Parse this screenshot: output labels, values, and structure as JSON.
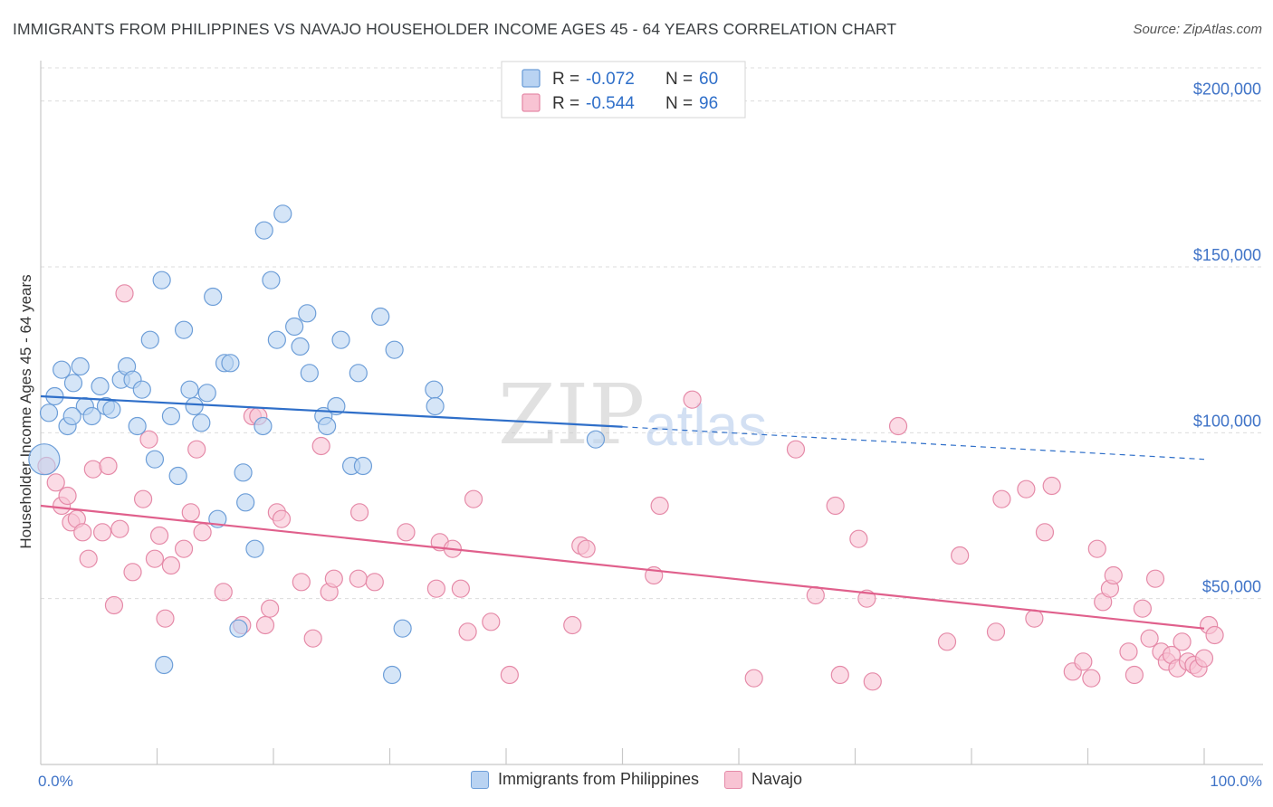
{
  "title": "IMMIGRANTS FROM PHILIPPINES VS NAVAJO HOUSEHOLDER INCOME AGES 45 - 64 YEARS CORRELATION CHART",
  "source": "Source: ZipAtlas.com",
  "watermark": {
    "zip": "ZIP",
    "atlas": "atlas"
  },
  "colors": {
    "blue_fill": "#b9d3f2",
    "blue_stroke": "#6d9ed8",
    "blue_line": "#2f6fc9",
    "pink_fill": "#f8c3d3",
    "pink_stroke": "#e58aa8",
    "pink_line": "#e0608c",
    "tick_label": "#3f73c7",
    "grid": "#dcdcdc"
  },
  "legend_top": [
    {
      "r_label": "R = ",
      "r_value": "-0.072",
      "n_label": "N = ",
      "n_value": "60"
    },
    {
      "r_label": "R = ",
      "r_value": "-0.544",
      "n_label": "N = ",
      "n_value": "96"
    }
  ],
  "chart_data": {
    "type": "scatter",
    "xlabel": "",
    "ylabel": "Householder Income Ages 45 - 64 years",
    "xlim": [
      0,
      100
    ],
    "ylim": [
      0,
      210000
    ],
    "x_tick_labels": {
      "left": "0.0%",
      "right": "100.0%"
    },
    "y_ticks": [
      {
        "value": 50000,
        "label": "$50,000"
      },
      {
        "value": 100000,
        "label": "$100,000"
      },
      {
        "value": 150000,
        "label": "$150,000"
      },
      {
        "value": 200000,
        "label": "$200,000"
      }
    ],
    "grid": true,
    "legend_position": "top-center",
    "series": [
      {
        "name": "Immigrants from Philippines",
        "color": "#b9d3f2",
        "trend": {
          "x0": 0,
          "y0": 111000,
          "x1": 50,
          "y1": 101800,
          "dash_x1": 100,
          "dash_y1": 92000
        },
        "points": [
          [
            0.3,
            92000
          ],
          [
            0.7,
            106000
          ],
          [
            1.2,
            111000
          ],
          [
            1.8,
            119000
          ],
          [
            2.3,
            102000
          ],
          [
            2.8,
            115000
          ],
          [
            3.4,
            120000
          ],
          [
            3.8,
            108000
          ],
          [
            4.4,
            105000
          ],
          [
            5.1,
            114000
          ],
          [
            5.6,
            108000
          ],
          [
            6.1,
            107000
          ],
          [
            6.9,
            116000
          ],
          [
            7.4,
            120000
          ],
          [
            7.9,
            116000
          ],
          [
            8.3,
            102000
          ],
          [
            8.7,
            113000
          ],
          [
            9.4,
            128000
          ],
          [
            9.8,
            92000
          ],
          [
            10.4,
            146000
          ],
          [
            11.2,
            105000
          ],
          [
            11.8,
            87000
          ],
          [
            12.3,
            131000
          ],
          [
            12.8,
            113000
          ],
          [
            13.2,
            108000
          ],
          [
            13.8,
            103000
          ],
          [
            14.3,
            112000
          ],
          [
            14.8,
            141000
          ],
          [
            15.2,
            74000
          ],
          [
            15.8,
            121000
          ],
          [
            16.3,
            121000
          ],
          [
            17.0,
            41000
          ],
          [
            17.4,
            88000
          ],
          [
            17.6,
            79000
          ],
          [
            18.4,
            65000
          ],
          [
            19.1,
            102000
          ],
          [
            19.2,
            161000
          ],
          [
            19.8,
            146000
          ],
          [
            20.3,
            128000
          ],
          [
            20.8,
            166000
          ],
          [
            21.8,
            132000
          ],
          [
            22.3,
            126000
          ],
          [
            22.9,
            136000
          ],
          [
            23.1,
            118000
          ],
          [
            24.3,
            105000
          ],
          [
            24.6,
            102000
          ],
          [
            25.4,
            108000
          ],
          [
            25.8,
            128000
          ],
          [
            26.7,
            90000
          ],
          [
            27.3,
            118000
          ],
          [
            27.7,
            90000
          ],
          [
            29.2,
            135000
          ],
          [
            30.4,
            125000
          ],
          [
            31.1,
            41000
          ],
          [
            33.8,
            113000
          ],
          [
            33.9,
            108000
          ],
          [
            47.7,
            98000
          ],
          [
            10.6,
            30000
          ],
          [
            30.2,
            27000
          ],
          [
            2.7,
            105000
          ]
        ]
      },
      {
        "name": "Navajo",
        "color": "#f8c3d3",
        "trend": {
          "x0": 0,
          "y0": 78000,
          "x1": 100,
          "y1": 41000
        },
        "points": [
          [
            0.5,
            90000
          ],
          [
            1.3,
            85000
          ],
          [
            1.8,
            78000
          ],
          [
            2.3,
            81000
          ],
          [
            2.6,
            73000
          ],
          [
            3.1,
            74000
          ],
          [
            3.6,
            70000
          ],
          [
            4.1,
            62000
          ],
          [
            4.5,
            89000
          ],
          [
            5.3,
            70000
          ],
          [
            5.8,
            90000
          ],
          [
            6.3,
            48000
          ],
          [
            6.8,
            71000
          ],
          [
            7.2,
            142000
          ],
          [
            7.9,
            58000
          ],
          [
            8.8,
            80000
          ],
          [
            9.3,
            98000
          ],
          [
            9.8,
            62000
          ],
          [
            10.2,
            69000
          ],
          [
            10.7,
            44000
          ],
          [
            11.2,
            60000
          ],
          [
            12.3,
            65000
          ],
          [
            12.9,
            76000
          ],
          [
            13.4,
            95000
          ],
          [
            13.9,
            70000
          ],
          [
            15.7,
            52000
          ],
          [
            17.3,
            42000
          ],
          [
            18.2,
            105000
          ],
          [
            18.7,
            105000
          ],
          [
            19.3,
            42000
          ],
          [
            19.7,
            47000
          ],
          [
            20.3,
            76000
          ],
          [
            20.7,
            74000
          ],
          [
            22.4,
            55000
          ],
          [
            23.4,
            38000
          ],
          [
            24.1,
            96000
          ],
          [
            24.8,
            52000
          ],
          [
            25.2,
            56000
          ],
          [
            27.3,
            56000
          ],
          [
            27.4,
            76000
          ],
          [
            28.7,
            55000
          ],
          [
            31.4,
            70000
          ],
          [
            34.0,
            53000
          ],
          [
            34.3,
            67000
          ],
          [
            35.4,
            65000
          ],
          [
            36.1,
            53000
          ],
          [
            36.7,
            40000
          ],
          [
            37.2,
            80000
          ],
          [
            38.7,
            43000
          ],
          [
            40.3,
            27000
          ],
          [
            45.7,
            42000
          ],
          [
            46.4,
            66000
          ],
          [
            46.9,
            65000
          ],
          [
            52.7,
            57000
          ],
          [
            53.2,
            78000
          ],
          [
            56.0,
            110000
          ],
          [
            61.3,
            26000
          ],
          [
            64.9,
            95000
          ],
          [
            66.6,
            51000
          ],
          [
            68.3,
            78000
          ],
          [
            68.7,
            27000
          ],
          [
            70.3,
            68000
          ],
          [
            71.0,
            50000
          ],
          [
            71.5,
            25000
          ],
          [
            73.7,
            102000
          ],
          [
            77.9,
            37000
          ],
          [
            79.0,
            63000
          ],
          [
            82.1,
            40000
          ],
          [
            82.6,
            80000
          ],
          [
            84.7,
            83000
          ],
          [
            85.4,
            44000
          ],
          [
            86.3,
            70000
          ],
          [
            86.9,
            84000
          ],
          [
            88.7,
            28000
          ],
          [
            89.6,
            31000
          ],
          [
            90.3,
            26000
          ],
          [
            90.8,
            65000
          ],
          [
            91.3,
            49000
          ],
          [
            91.9,
            53000
          ],
          [
            92.2,
            57000
          ],
          [
            93.5,
            34000
          ],
          [
            94.0,
            27000
          ],
          [
            94.7,
            47000
          ],
          [
            95.3,
            38000
          ],
          [
            95.8,
            56000
          ],
          [
            96.3,
            34000
          ],
          [
            96.8,
            31000
          ],
          [
            97.2,
            33000
          ],
          [
            97.7,
            29000
          ],
          [
            98.1,
            37000
          ],
          [
            98.6,
            31000
          ],
          [
            99.1,
            30000
          ],
          [
            99.5,
            29000
          ],
          [
            100.0,
            32000
          ],
          [
            100.4,
            42000
          ],
          [
            100.9,
            39000
          ]
        ]
      }
    ]
  }
}
